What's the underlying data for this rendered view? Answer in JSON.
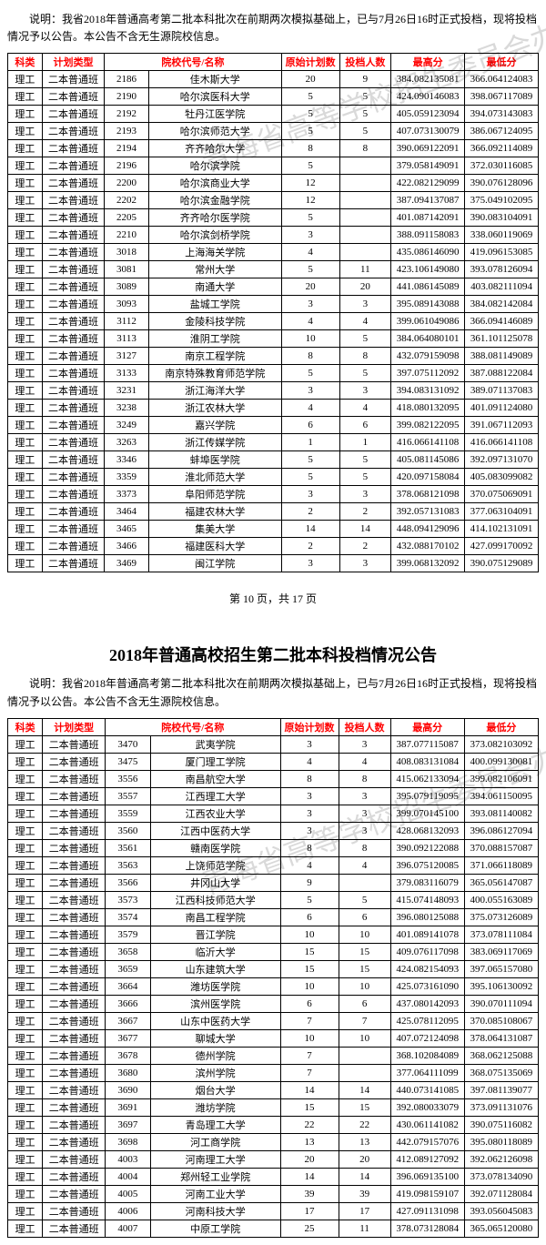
{
  "note_text": "说明：我省2018年普通高考第二批本科批次在前期两次模拟基础上，已与7月26日16时正式投档，现将投档情况予以公告。本公告不含无生源院校信息。",
  "headers": {
    "subject": "科类",
    "plan": "计划类型",
    "school": "院校代号/名称",
    "orig": "原始计划数",
    "cast": "投档人数",
    "high": "最高分",
    "low": "最低分"
  },
  "subject_val": "理工",
  "plan_val": "二本普通班",
  "pager_text": "第 10 页，共 17 页",
  "title2": "2018年普通高校招生第二批本科投档情况公告",
  "watermark_text": "青海省高等学校招生委员会办公室",
  "rows1": [
    {
      "code": "2186",
      "name": "佳木斯大学",
      "orig": "20",
      "cast": "9",
      "high": "384.082135081",
      "low": "366.064124083"
    },
    {
      "code": "2190",
      "name": "哈尔滨医科大学",
      "orig": "5",
      "cast": "5",
      "high": "424.090146083",
      "low": "398.067117089"
    },
    {
      "code": "2192",
      "name": "牡丹江医学院",
      "orig": "5",
      "cast": "5",
      "high": "405.059123094",
      "low": "394.073143083"
    },
    {
      "code": "2193",
      "name": "哈尔滨师范大学",
      "orig": "5",
      "cast": "5",
      "high": "407.073130079",
      "low": "386.067124095"
    },
    {
      "code": "2194",
      "name": "齐齐哈尔大学",
      "orig": "8",
      "cast": "8",
      "high": "390.069122091",
      "low": "366.092114089"
    },
    {
      "code": "2196",
      "name": "哈尔滨学院",
      "orig": "5",
      "cast": "",
      "high": "379.058149091",
      "low": "372.030116085"
    },
    {
      "code": "2200",
      "name": "哈尔滨商业大学",
      "orig": "12",
      "cast": "",
      "high": "422.082129099",
      "low": "390.076128096"
    },
    {
      "code": "2202",
      "name": "哈尔滨金融学院",
      "orig": "12",
      "cast": "",
      "high": "387.094137087",
      "low": "375.049102095"
    },
    {
      "code": "2205",
      "name": "齐齐哈尔医学院",
      "orig": "5",
      "cast": "",
      "high": "401.087142091",
      "low": "390.083104091"
    },
    {
      "code": "2210",
      "name": "哈尔滨剑桥学院",
      "orig": "3",
      "cast": "",
      "high": "388.091158083",
      "low": "338.060119069"
    },
    {
      "code": "3018",
      "name": "上海海关学院",
      "orig": "4",
      "cast": "",
      "high": "435.086146090",
      "low": "419.096153085"
    },
    {
      "code": "3081",
      "name": "常州大学",
      "orig": "5",
      "cast": "11",
      "high": "423.106149080",
      "low": "393.078126094"
    },
    {
      "code": "3089",
      "name": "南通大学",
      "orig": "20",
      "cast": "20",
      "high": "441.086145089",
      "low": "403.082111094"
    },
    {
      "code": "3093",
      "name": "盐城工学院",
      "orig": "3",
      "cast": "3",
      "high": "395.089143088",
      "low": "384.082142084"
    },
    {
      "code": "3112",
      "name": "金陵科技学院",
      "orig": "4",
      "cast": "4",
      "high": "399.061049086",
      "low": "366.094146089"
    },
    {
      "code": "3113",
      "name": "淮阴工学院",
      "orig": "10",
      "cast": "5",
      "high": "384.064080101",
      "low": "361.101125078"
    },
    {
      "code": "3127",
      "name": "南京工程学院",
      "orig": "8",
      "cast": "8",
      "high": "432.079159098",
      "low": "388.081149089"
    },
    {
      "code": "3133",
      "name": "南京特殊教育师范学院",
      "orig": "5",
      "cast": "5",
      "high": "397.075112092",
      "low": "387.088122084"
    },
    {
      "code": "3231",
      "name": "浙江海洋大学",
      "orig": "3",
      "cast": "3",
      "high": "394.083131092",
      "low": "389.071137083"
    },
    {
      "code": "3238",
      "name": "浙江农林大学",
      "orig": "4",
      "cast": "4",
      "high": "418.080132095",
      "low": "401.091124080"
    },
    {
      "code": "3249",
      "name": "嘉兴学院",
      "orig": "6",
      "cast": "6",
      "high": "399.082122095",
      "low": "391.067112093"
    },
    {
      "code": "3263",
      "name": "浙江传媒学院",
      "orig": "1",
      "cast": "1",
      "high": "416.066141108",
      "low": "416.066141108"
    },
    {
      "code": "3346",
      "name": "蚌埠医学院",
      "orig": "5",
      "cast": "5",
      "high": "405.081145086",
      "low": "392.097131070"
    },
    {
      "code": "3359",
      "name": "淮北师范大学",
      "orig": "5",
      "cast": "5",
      "high": "420.097158084",
      "low": "405.083099082"
    },
    {
      "code": "3373",
      "name": "阜阳师范学院",
      "orig": "3",
      "cast": "3",
      "high": "378.068121098",
      "low": "370.075069091"
    },
    {
      "code": "3464",
      "name": "福建农林大学",
      "orig": "2",
      "cast": "2",
      "high": "392.057131083",
      "low": "377.063104091"
    },
    {
      "code": "3465",
      "name": "集美大学",
      "orig": "14",
      "cast": "14",
      "high": "448.094129096",
      "low": "414.102131091"
    },
    {
      "code": "3466",
      "name": "福建医科大学",
      "orig": "2",
      "cast": "2",
      "high": "432.088170102",
      "low": "427.099170092"
    },
    {
      "code": "3469",
      "name": "闽江学院",
      "orig": "3",
      "cast": "3",
      "high": "399.068132092",
      "low": "390.075129089"
    }
  ],
  "rows2": [
    {
      "code": "3470",
      "name": "武夷学院",
      "orig": "3",
      "cast": "3",
      "high": "387.077115087",
      "low": "373.082103092"
    },
    {
      "code": "3475",
      "name": "厦门理工学院",
      "orig": "4",
      "cast": "4",
      "high": "408.083131084",
      "low": "400.099130081"
    },
    {
      "code": "3556",
      "name": "南昌航空大学",
      "orig": "8",
      "cast": "8",
      "high": "415.062133094",
      "low": "399.082106091"
    },
    {
      "code": "3557",
      "name": "江西理工大学",
      "orig": "3",
      "cast": "3",
      "high": "395.079119095",
      "low": "394.061150095"
    },
    {
      "code": "3559",
      "name": "江西农业大学",
      "orig": "3",
      "cast": "3",
      "high": "399.070145100",
      "low": "393.081140082"
    },
    {
      "code": "3560",
      "name": "江西中医药大学",
      "orig": "3",
      "cast": "3",
      "high": "428.068132093",
      "low": "396.086127094"
    },
    {
      "code": "3561",
      "name": "赣南医学院",
      "orig": "8",
      "cast": "8",
      "high": "390.092122088",
      "low": "370.088157087"
    },
    {
      "code": "3563",
      "name": "上饶师范学院",
      "orig": "4",
      "cast": "4",
      "high": "396.075120085",
      "low": "371.066118089"
    },
    {
      "code": "3566",
      "name": "井冈山大学",
      "orig": "9",
      "cast": "",
      "high": "379.083116079",
      "low": "365.056147087"
    },
    {
      "code": "3573",
      "name": "江西科技师范大学",
      "orig": "5",
      "cast": "5",
      "high": "415.074148093",
      "low": "400.055163089"
    },
    {
      "code": "3574",
      "name": "南昌工程学院",
      "orig": "6",
      "cast": "6",
      "high": "396.080125088",
      "low": "375.073126089"
    },
    {
      "code": "3579",
      "name": "晋江学院",
      "orig": "10",
      "cast": "10",
      "high": "401.089141078",
      "low": "373.078111084"
    },
    {
      "code": "3658",
      "name": "临沂大学",
      "orig": "15",
      "cast": "15",
      "high": "409.076117098",
      "low": "383.069117069"
    },
    {
      "code": "3659",
      "name": "山东建筑大学",
      "orig": "15",
      "cast": "15",
      "high": "424.082154093",
      "low": "397.065157080"
    },
    {
      "code": "3664",
      "name": "潍坊医学院",
      "orig": "10",
      "cast": "10",
      "high": "425.073161090",
      "low": "395.106130092"
    },
    {
      "code": "3666",
      "name": "滨州医学院",
      "orig": "6",
      "cast": "6",
      "high": "437.080142093",
      "low": "390.070111094"
    },
    {
      "code": "3667",
      "name": "山东中医药大学",
      "orig": "7",
      "cast": "7",
      "high": "425.078112095",
      "low": "370.085108067"
    },
    {
      "code": "3677",
      "name": "聊城大学",
      "orig": "10",
      "cast": "10",
      "high": "407.072124098",
      "low": "378.064131087"
    },
    {
      "code": "3678",
      "name": "德州学院",
      "orig": "7",
      "cast": "",
      "high": "368.102084089",
      "low": "368.062125088"
    },
    {
      "code": "3680",
      "name": "滨州学院",
      "orig": "7",
      "cast": "",
      "high": "377.064111099",
      "low": "368.075135069"
    },
    {
      "code": "3690",
      "name": "烟台大学",
      "orig": "14",
      "cast": "14",
      "high": "440.073141085",
      "low": "397.081139077"
    },
    {
      "code": "3691",
      "name": "潍坊学院",
      "orig": "15",
      "cast": "15",
      "high": "392.080033079",
      "low": "373.091131076"
    },
    {
      "code": "3697",
      "name": "青岛理工大学",
      "orig": "22",
      "cast": "22",
      "high": "430.061141082",
      "low": "390.075116082"
    },
    {
      "code": "3698",
      "name": "河工商学院",
      "orig": "13",
      "cast": "13",
      "high": "442.079157076",
      "low": "395.080118089"
    },
    {
      "code": "4003",
      "name": "河南理工大学",
      "orig": "20",
      "cast": "20",
      "high": "412.089127092",
      "low": "392.062126098"
    },
    {
      "code": "4004",
      "name": "郑州轻工业学院",
      "orig": "14",
      "cast": "14",
      "high": "396.069135100",
      "low": "373.078134090"
    },
    {
      "code": "4005",
      "name": "河南工业大学",
      "orig": "39",
      "cast": "39",
      "high": "419.098159107",
      "low": "392.071128084"
    },
    {
      "code": "4006",
      "name": "河南科技大学",
      "orig": "17",
      "cast": "17",
      "high": "427.091131098",
      "low": "393.056045083"
    },
    {
      "code": "4007",
      "name": "中原工学院",
      "orig": "25",
      "cast": "11",
      "high": "378.073128084",
      "low": "365.065120080"
    }
  ]
}
